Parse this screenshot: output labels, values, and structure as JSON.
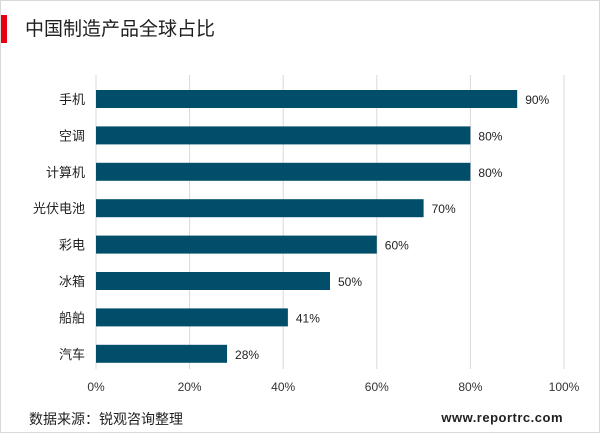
{
  "title": "中国制造产品全球占比",
  "source": "数据来源：锐观咨询整理",
  "website": "www.reportrc.com",
  "colors": {
    "bar": "#014e6b",
    "grid": "#d9d9d9",
    "accent": "#e60012"
  },
  "chart_data": {
    "type": "bar",
    "orientation": "horizontal",
    "categories": [
      "手机",
      "空调",
      "计算机",
      "光伏电池",
      "彩电",
      "冰箱",
      "船舶",
      "汽车"
    ],
    "values": [
      90,
      80,
      80,
      70,
      60,
      50,
      41,
      28
    ],
    "value_labels": [
      "90%",
      "80%",
      "80%",
      "70%",
      "60%",
      "50%",
      "41%",
      "28%"
    ],
    "x_ticks": [
      "0%",
      "20%",
      "40%",
      "60%",
      "80%",
      "100%"
    ],
    "xlim": [
      0,
      100
    ],
    "grid": true,
    "legend": "none"
  }
}
